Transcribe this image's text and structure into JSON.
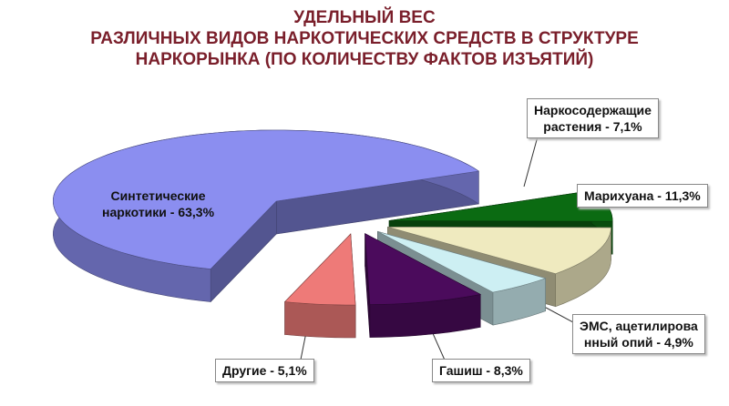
{
  "chart_data": {
    "type": "pie3d",
    "title": "УДЕЛЬНЫЙ ВЕС\nРАЗЛИЧНЫХ ВИДОВ НАРКОТИЧЕСКИХ СРЕДСТВ В СТРУКТУРЕ\nНАРКОРЫНКА (ПО КОЛИЧЕСТВУ ФАКТОВ ИЗЪЯТИЙ)",
    "values": [
      7.1,
      11.3,
      4.9,
      8.3,
      5.1,
      63.3
    ],
    "value_labels": [
      "Наркосодержащие\nрастения - 7,1%",
      "Марихуана - 11,3%",
      "ЭМС, ацетилирова\nнный опий - 4,9%",
      "Гашиш - 8,3%",
      "Другие - 5,1%",
      "Синтетические\nнаркотики - 63,3%"
    ],
    "colors": [
      "#0b6b12",
      "#efeabf",
      "#cdeff3",
      "#4b0b5c",
      "#ee7a78",
      "#8b8ef0"
    ]
  }
}
